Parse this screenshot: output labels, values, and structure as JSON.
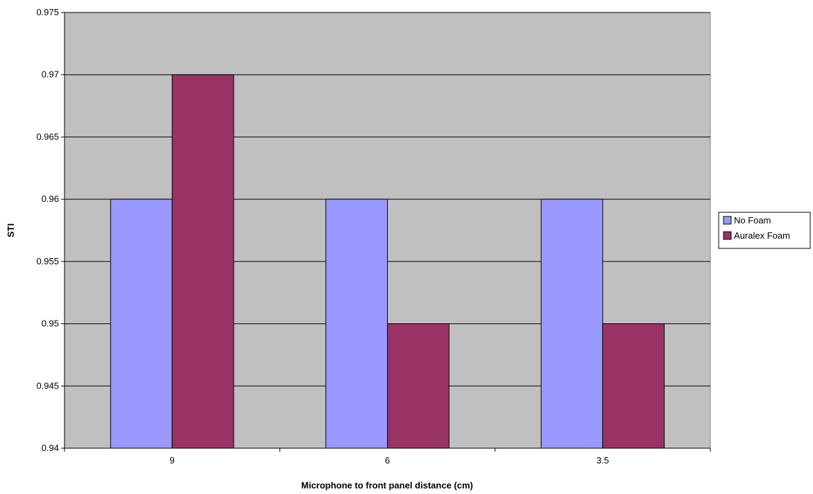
{
  "chart_data": {
    "type": "bar",
    "categories": [
      "9",
      "6",
      "3.5"
    ],
    "series": [
      {
        "name": "No Foam",
        "values": [
          0.96,
          0.96,
          0.96
        ]
      },
      {
        "name": "Auralex Foam",
        "values": [
          0.97,
          0.95,
          0.95
        ]
      }
    ],
    "xlabel": "Microphone to front panel distance (cm)",
    "ylabel": "STI",
    "ylim": [
      0.94,
      0.975
    ],
    "yticks": [
      "0.94",
      "0.945",
      "0.95",
      "0.955",
      "0.96",
      "0.965",
      "0.97",
      "0.975"
    ],
    "grid": true,
    "legend_position": "right",
    "colors": {
      "plot_background": "#c0c0c0",
      "No Foam": "#9999ff",
      "Auralex Foam": "#993366"
    }
  }
}
